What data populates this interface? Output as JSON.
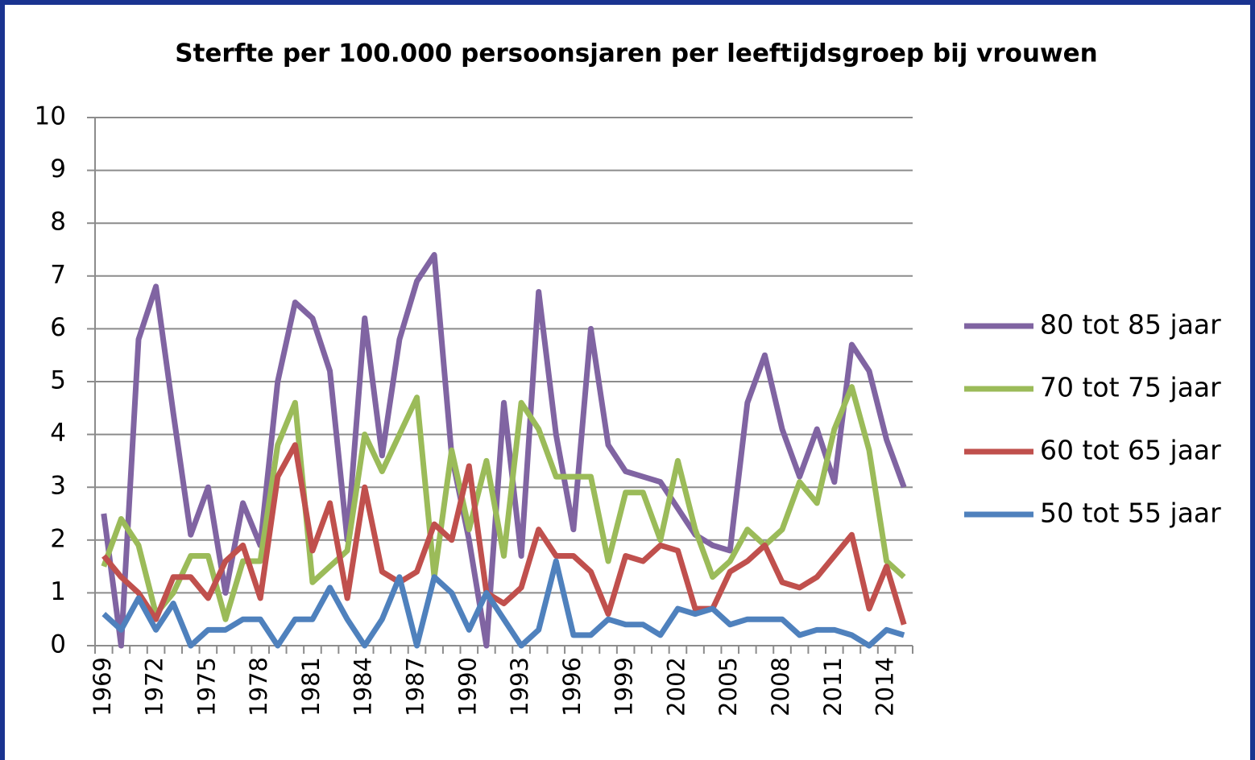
{
  "chart_data": {
    "type": "line",
    "title": "Sterfte per 100.000 persoonsjaren per leeftijdsgroep bij vrouwen",
    "categories": [
      "1969",
      null,
      null,
      "1972",
      null,
      null,
      "1975",
      null,
      null,
      "1978",
      null,
      null,
      "1981",
      null,
      null,
      "1984",
      null,
      null,
      "1987",
      null,
      null,
      "1990",
      null,
      null,
      "1993",
      null,
      null,
      "1996",
      null,
      null,
      "1999",
      null,
      null,
      "2002",
      null,
      null,
      "2005",
      null,
      null,
      "2008",
      null,
      null,
      "2011",
      null,
      null,
      "2014",
      null
    ],
    "series": [
      {
        "name": "80 tot 85 jaar",
        "color": "#8064a2",
        "values": [
          2.5,
          0,
          5.8,
          6.8,
          4.4,
          2.1,
          3.0,
          1.0,
          2.7,
          1.9,
          5.0,
          6.5,
          6.2,
          5.2,
          2.0,
          6.2,
          3.6,
          5.8,
          6.9,
          7.4,
          3.6,
          2.0,
          0,
          4.6,
          1.7,
          6.7,
          4.0,
          2.2,
          6.0,
          3.8,
          3.3,
          3.2,
          3.1,
          2.6,
          2.1,
          1.9,
          1.8,
          4.6,
          5.5,
          4.1,
          3.2,
          4.1,
          3.1,
          5.7,
          5.2,
          3.9,
          3.0
        ]
      },
      {
        "name": "70 tot 75 jaar",
        "color": "#9bbb59",
        "values": [
          1.5,
          2.4,
          1.9,
          0.6,
          1.0,
          1.7,
          1.7,
          0.5,
          1.6,
          1.6,
          3.8,
          4.6,
          1.2,
          1.5,
          1.8,
          4.0,
          3.3,
          4.0,
          4.7,
          1.3,
          3.7,
          2.2,
          3.5,
          1.7,
          4.6,
          4.1,
          3.2,
          3.2,
          3.2,
          1.6,
          2.9,
          2.9,
          2.0,
          3.5,
          2.2,
          1.3,
          1.6,
          2.2,
          1.9,
          2.2,
          3.1,
          2.7,
          4.1,
          4.9,
          3.7,
          1.6,
          1.3
        ]
      },
      {
        "name": "60 tot 65 jaar",
        "color": "#c0504d",
        "values": [
          1.7,
          1.3,
          1.0,
          0.5,
          1.3,
          1.3,
          0.9,
          1.6,
          1.9,
          0.9,
          3.2,
          3.8,
          1.8,
          2.7,
          0.9,
          3.0,
          1.4,
          1.2,
          1.4,
          2.3,
          2.0,
          3.4,
          1.0,
          0.8,
          1.1,
          2.2,
          1.7,
          1.7,
          1.4,
          0.6,
          1.7,
          1.6,
          1.9,
          1.8,
          0.7,
          0.7,
          1.4,
          1.6,
          1.9,
          1.2,
          1.1,
          1.3,
          1.7,
          2.1,
          0.7,
          1.5,
          0.4
        ]
      },
      {
        "name": "50 tot 55 jaar",
        "color": "#4f81bd",
        "values": [
          0.6,
          0.3,
          0.9,
          0.3,
          0.8,
          0.0,
          0.3,
          0.3,
          0.5,
          0.5,
          0.0,
          0.5,
          0.5,
          1.1,
          0.5,
          0.0,
          0.5,
          1.3,
          0.0,
          1.3,
          1.0,
          0.3,
          1.0,
          0.5,
          0.0,
          0.3,
          1.6,
          0.2,
          0.2,
          0.5,
          0.4,
          0.4,
          0.2,
          0.7,
          0.6,
          0.7,
          0.4,
          0.5,
          0.5,
          0.5,
          0.2,
          0.3,
          0.3,
          0.2,
          0.0,
          0.3,
          0.2
        ]
      }
    ],
    "ylim": [
      0,
      10
    ],
    "yticks": [
      0,
      1,
      2,
      3,
      4,
      5,
      6,
      7,
      8,
      9,
      10
    ],
    "grid": true,
    "legend": "right"
  }
}
